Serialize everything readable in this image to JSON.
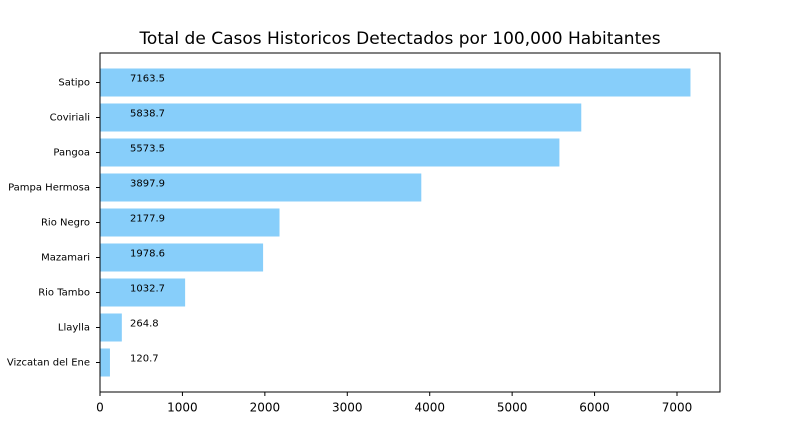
{
  "chart_data": {
    "type": "barh",
    "title": "Total de Casos Historicos Detectados por 100,000 Habitantes",
    "categories": [
      "Satipo",
      "Coviriali",
      "Pangoa",
      "Pampa Hermosa",
      "Rio Negro",
      "Mazamari",
      "Rio Tambo",
      "Llaylla",
      "Vizcatan del Ene"
    ],
    "values": [
      7163.5,
      5838.7,
      5573.5,
      3897.9,
      2177.9,
      1978.6,
      1032.7,
      264.8,
      120.7
    ],
    "color": "#87cefa",
    "xlim": [
      0,
      7521.7
    ],
    "xticks": [
      0,
      1000,
      2000,
      3000,
      4000,
      5000,
      6000,
      7000
    ]
  }
}
